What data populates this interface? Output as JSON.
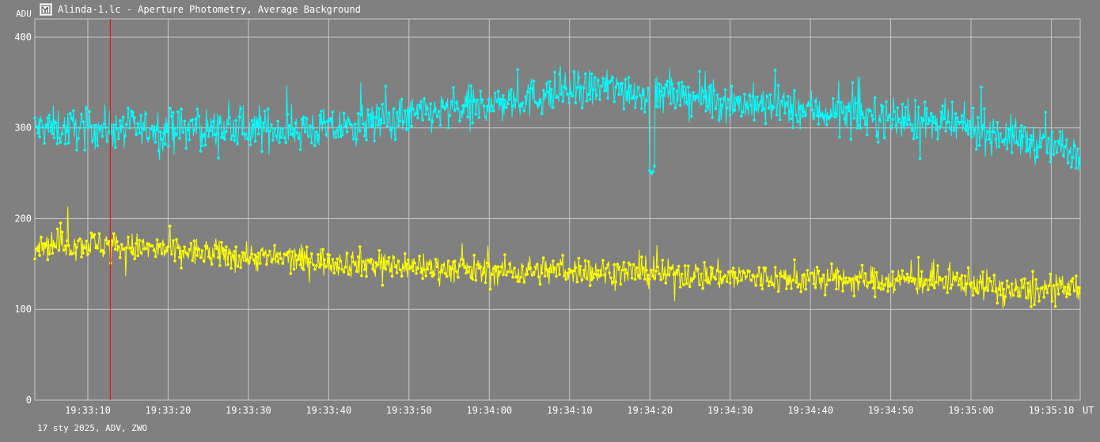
{
  "window": {
    "title": "Alinda-1.lc - Aperture Photometry, Average Background"
  },
  "footer": {
    "text": "17 sty 2025, ADV, ZWO"
  },
  "colors": {
    "background": "#808080",
    "grid": "#c8c8c8",
    "series_1": "#00ffff",
    "series_2": "#ffff00",
    "cursor": "#ff0000"
  },
  "chart_data": {
    "type": "line",
    "title": "Alinda-1.lc - Aperture Photometry, Average Background",
    "ylabel": "ADU",
    "xlabel": "UT",
    "ylim": [
      0,
      420
    ],
    "yticks": [
      0,
      100,
      200,
      300,
      400
    ],
    "xrange": [
      "19:33:03.4",
      "19:35:13.6"
    ],
    "xticks": [
      "19:33:10",
      "19:33:20",
      "19:33:30",
      "19:33:40",
      "19:33:50",
      "19:34:00",
      "19:34:10",
      "19:34:20",
      "19:34:30",
      "19:34:40",
      "19:34:50",
      "19:35:00",
      "19:35:10"
    ],
    "grid": true,
    "cursor_time": "19:33:12.8",
    "series": [
      {
        "color": "#00ffff",
        "trend_times": [
          "19:33:03.4",
          "19:33:40",
          "19:33:50",
          "19:34:00",
          "19:34:05",
          "19:34:10",
          "19:34:15",
          "19:34:20",
          "19:34:30",
          "19:34:40",
          "19:34:50",
          "19:35:00",
          "19:35:10",
          "19:35:13.6"
        ],
        "trend_values": [
          300,
          298,
          313,
          325,
          333,
          340,
          345,
          338,
          328,
          320,
          310,
          300,
          280,
          275
        ],
        "spread": 22,
        "dip": {
          "time": "19:34:20.3",
          "value": 248
        }
      },
      {
        "color": "#ffff00",
        "trend_times": [
          "19:33:03.4",
          "19:33:10",
          "19:33:30",
          "19:33:50",
          "19:34:00",
          "19:34:10",
          "19:34:20",
          "19:34:30",
          "19:34:40",
          "19:34:50",
          "19:35:00",
          "19:35:05",
          "19:35:13.6"
        ],
        "trend_values": [
          172,
          172,
          158,
          148,
          142,
          143,
          140,
          136,
          133,
          132,
          130,
          120,
          122
        ],
        "spread": 16
      }
    ]
  }
}
